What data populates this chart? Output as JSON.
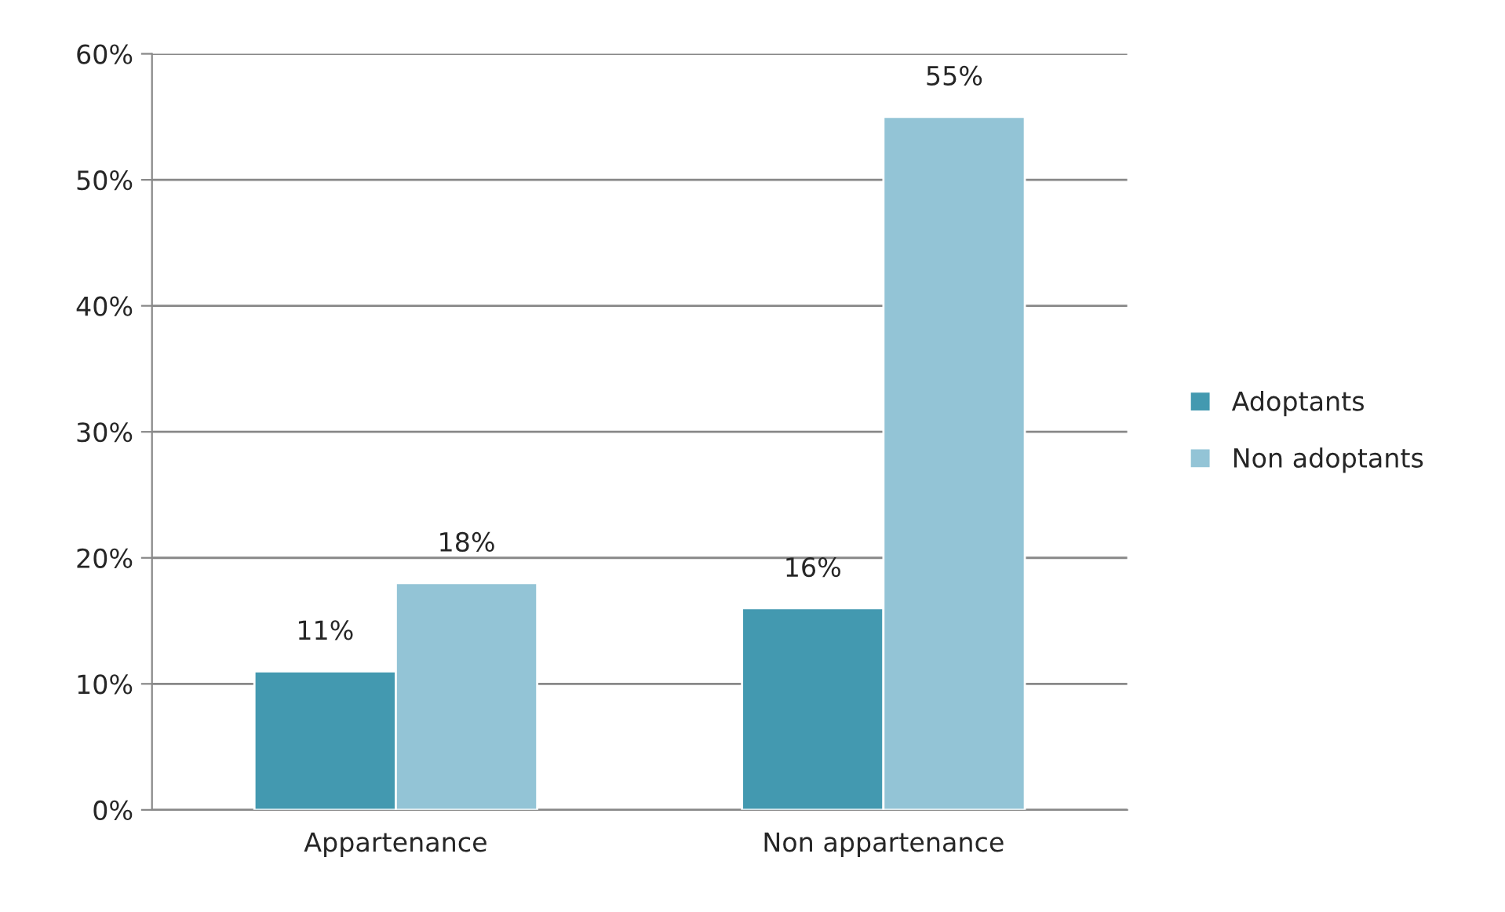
{
  "chart_data": {
    "type": "bar",
    "categories": [
      "Appartenance",
      "Non appartenance"
    ],
    "series": [
      {
        "name": "Adoptants",
        "color": "#4399b0",
        "values": [
          11,
          16
        ],
        "value_labels": [
          "11%",
          "16%"
        ]
      },
      {
        "name": "Non adoptants",
        "color": "#93c4d6",
        "values": [
          18,
          55
        ],
        "value_labels": [
          "18%",
          "55%"
        ]
      }
    ],
    "ylim": [
      0,
      60
    ],
    "yticks": [
      {
        "value": 0,
        "label": "0%"
      },
      {
        "value": 10,
        "label": "10%"
      },
      {
        "value": 20,
        "label": "20%"
      },
      {
        "value": 30,
        "label": "30%"
      },
      {
        "value": 40,
        "label": "40%"
      },
      {
        "value": 50,
        "label": "50%"
      },
      {
        "value": 60,
        "label": "60%"
      }
    ],
    "grid": "y",
    "legend": "right"
  }
}
